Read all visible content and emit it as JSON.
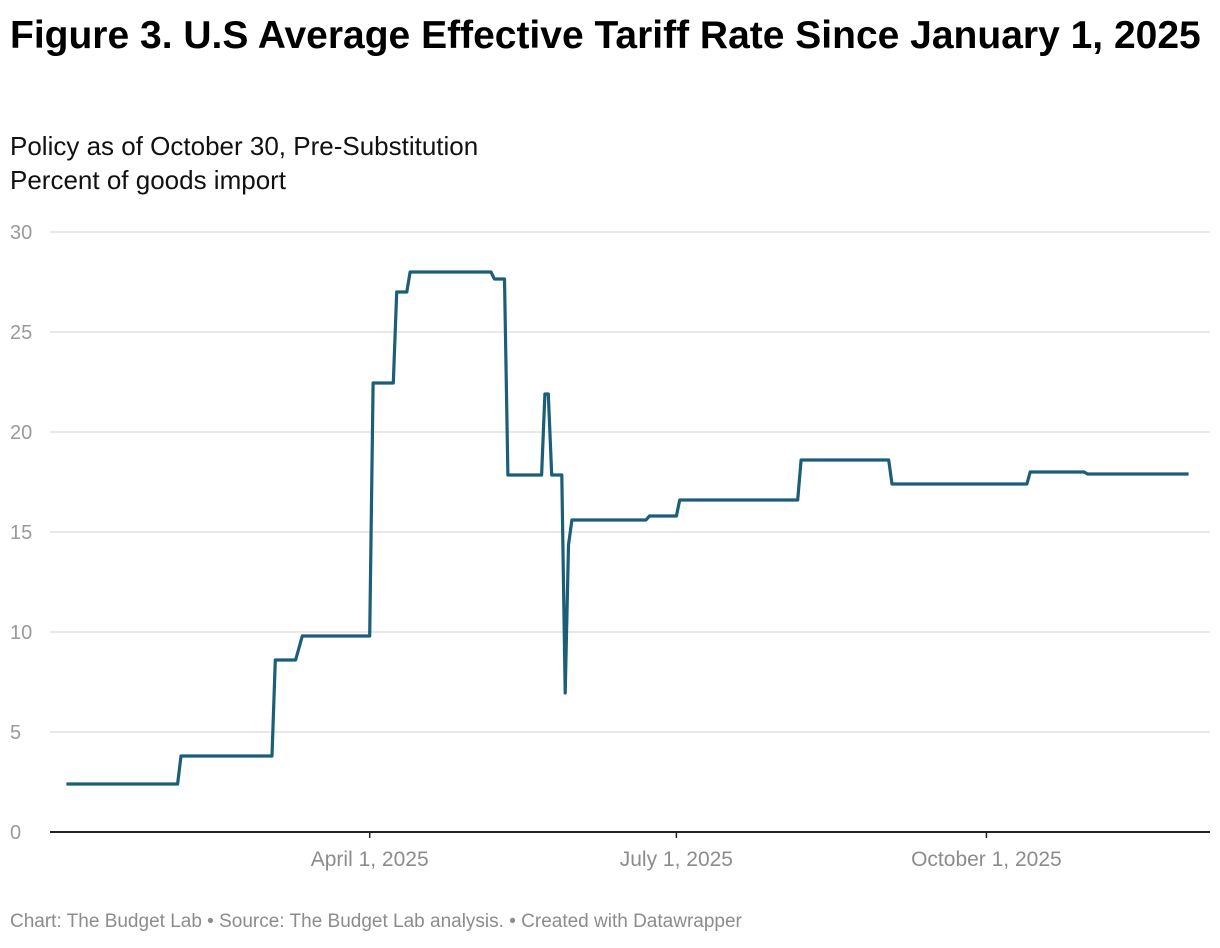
{
  "chart_data": {
    "type": "line",
    "title": "Figure 3. U.S Average Effective Tariff Rate Since January 1, 2025",
    "subtitle": "Policy as of October 30, Pre-Substitution",
    "ylabel": "Percent of goods import",
    "xlabel": "",
    "ylim": [
      0,
      30
    ],
    "yticks": [
      "0",
      "5",
      "10",
      "15",
      "20",
      "25",
      "30"
    ],
    "xlim": [
      "2025-01-01",
      "2025-12-08"
    ],
    "xticks": [
      {
        "date": "2025-04-01",
        "label": "April 1, 2025"
      },
      {
        "date": "2025-07-01",
        "label": "July 1, 2025"
      },
      {
        "date": "2025-10-01",
        "label": "October 1, 2025"
      }
    ],
    "grid": true,
    "color": "#1b5e78",
    "series": [
      {
        "points": [
          [
            "2025-01-01",
            2.4
          ],
          [
            "2025-02-03",
            2.4
          ],
          [
            "2025-02-04",
            3.8
          ],
          [
            "2025-03-03",
            3.8
          ],
          [
            "2025-03-04",
            8.6
          ],
          [
            "2025-03-10",
            8.6
          ],
          [
            "2025-03-12",
            9.8
          ],
          [
            "2025-04-01",
            9.8
          ],
          [
            "2025-04-02",
            22.45
          ],
          [
            "2025-04-08",
            22.45
          ],
          [
            "2025-04-09",
            27.0
          ],
          [
            "2025-04-12",
            27.0
          ],
          [
            "2025-04-13",
            28.0
          ],
          [
            "2025-05-07",
            28.0
          ],
          [
            "2025-05-08",
            27.65
          ],
          [
            "2025-05-11",
            27.65
          ],
          [
            "2025-05-12",
            17.85
          ],
          [
            "2025-05-22",
            17.85
          ],
          [
            "2025-05-23",
            21.9
          ],
          [
            "2025-05-24",
            21.9
          ],
          [
            "2025-05-25",
            17.85
          ],
          [
            "2025-05-28",
            17.85
          ],
          [
            "2025-05-29",
            6.95
          ],
          [
            "2025-05-30",
            14.35
          ],
          [
            "2025-05-31",
            15.6
          ],
          [
            "2025-06-22",
            15.6
          ],
          [
            "2025-06-23",
            15.8
          ],
          [
            "2025-07-01",
            15.8
          ],
          [
            "2025-07-02",
            16.6
          ],
          [
            "2025-08-06",
            16.6
          ],
          [
            "2025-08-07",
            18.6
          ],
          [
            "2025-09-02",
            18.6
          ],
          [
            "2025-09-03",
            17.4
          ],
          [
            "2025-10-13",
            17.4
          ],
          [
            "2025-10-14",
            18.0
          ],
          [
            "2025-10-30",
            18.0
          ],
          [
            "2025-10-31",
            17.9
          ],
          [
            "2025-11-30",
            17.9
          ]
        ]
      }
    ]
  },
  "footer": "Chart: The Budget Lab • Source: The Budget Lab analysis. • Created with Datawrapper"
}
